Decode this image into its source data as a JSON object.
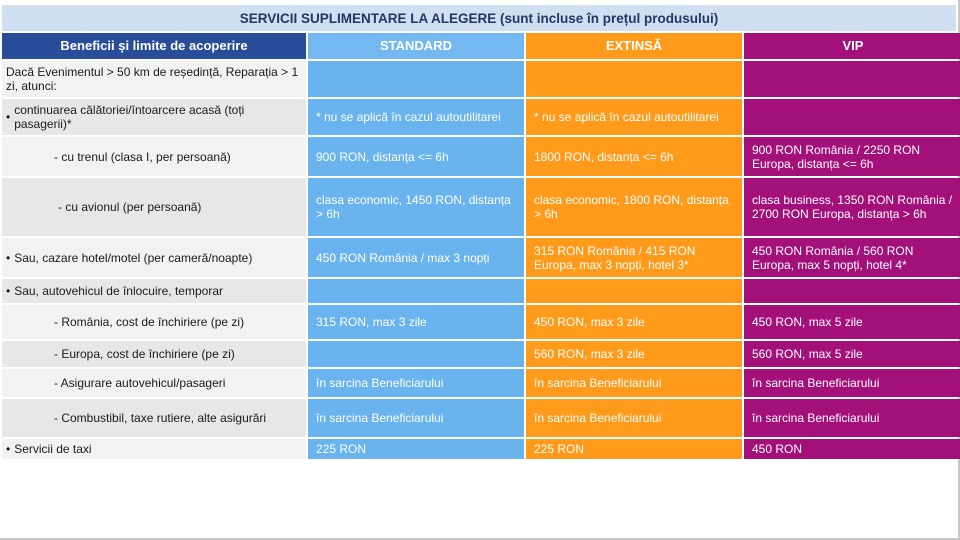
{
  "title": "SERVICII SUPLIMENTARE LA ALEGERE (sunt incluse în prețul produsului)",
  "headers": {
    "label": "Beneficii și limite de acoperire",
    "standard": "STANDARD",
    "extinsa": "EXTINSĂ",
    "vip": "VIP"
  },
  "rows": [
    {
      "label": "Dacă Evenimentul > 50 km de reședință, Reparația > 1 zi, atunci:",
      "standard": "",
      "extinsa": "",
      "vip": ""
    },
    {
      "label": "continuarea călătoriei/întoarcere acasă (toți pasagerii)*",
      "standard": "* nu se aplică în cazul autoutilitarei",
      "extinsa": "* nu se aplică în cazul autoutilitarei",
      "vip": ""
    },
    {
      "label": "- cu trenul (clasa I, per persoană)",
      "standard": "900 RON, distanța <= 6h",
      "extinsa": "1800 RON, distanța <= 6h",
      "vip": "900 RON România / 2250 RON Europa, distanța <= 6h"
    },
    {
      "label": "- cu avionul (per persoană)",
      "standard": "clasa economic, 1450 RON, distanța > 6h",
      "extinsa": "clasa economic, 1800 RON, distanța > 6h",
      "vip": "clasa business, 1350 RON România / 2700 RON Europa, distanța > 6h"
    },
    {
      "label": "Sau, cazare hotel/motel (per cameră/noapte)",
      "standard": "450 RON România / max 3 nopți",
      "extinsa": "315 RON România / 415 RON Europa, max 3 nopți, hotel 3*",
      "vip": "450 RON România / 560 RON Europa, max 5 nopți, hotel 4*"
    },
    {
      "label": "Sau, autovehicul de înlocuire, temporar",
      "standard": "",
      "extinsa": "",
      "vip": ""
    },
    {
      "label": "- România, cost de închiriere (pe zi)",
      "standard": "315 RON, max 3 zile",
      "extinsa": "450 RON, max 3 zile",
      "vip": "450 RON, max 5 zile"
    },
    {
      "label": "- Europa, cost de închiriere (pe zi)",
      "standard": "",
      "extinsa": "560 RON, max 3 zile",
      "vip": "560 RON, max 5 zile"
    },
    {
      "label": "- Asigurare autovehicul/pasageri",
      "standard": "în sarcina Beneficiarului",
      "extinsa": "în sarcina Beneficiarului",
      "vip": "în sarcina Beneficiarului"
    },
    {
      "label": "- Combustibil, taxe rutiere, alte asigurări",
      "standard": "în sarcina Beneficiarului",
      "extinsa": "în sarcina Beneficiarului",
      "vip": "în sarcina Beneficiarului"
    },
    {
      "label": "Servicii de taxi",
      "standard": "225 RON",
      "extinsa": "225 RON",
      "vip": "450 RON"
    }
  ]
}
